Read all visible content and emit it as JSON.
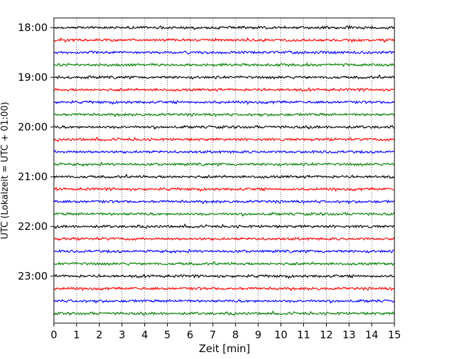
{
  "chart_data": {
    "type": "line",
    "title": "",
    "xlabel": "Zeit  [min]",
    "ylabel": "UTC (Lokalzeit = UTC + 01:00)",
    "xlim": [
      0,
      15
    ],
    "x_ticks": [
      "0",
      "1",
      "2",
      "3",
      "4",
      "5",
      "6",
      "7",
      "8",
      "9",
      "10",
      "11",
      "12",
      "13",
      "14",
      "15"
    ],
    "y_ticks": [
      "18:00",
      "19:00",
      "20:00",
      "21:00",
      "22:00",
      "23:00"
    ],
    "grid": "vertical-dotted",
    "trace_colors": [
      "#000000",
      "#ff0000",
      "#0000ff",
      "#008000"
    ],
    "series": [
      {
        "start": "18:00"
      },
      {
        "start": "18:15"
      },
      {
        "start": "18:30"
      },
      {
        "start": "18:45"
      },
      {
        "start": "19:00"
      },
      {
        "start": "19:15"
      },
      {
        "start": "19:30"
      },
      {
        "start": "19:45"
      },
      {
        "start": "20:00"
      },
      {
        "start": "20:15"
      },
      {
        "start": "20:30"
      },
      {
        "start": "20:45"
      },
      {
        "start": "21:00"
      },
      {
        "start": "21:15"
      },
      {
        "start": "21:30"
      },
      {
        "start": "21:45"
      },
      {
        "start": "22:00"
      },
      {
        "start": "22:15"
      },
      {
        "start": "22:30"
      },
      {
        "start": "22:45"
      },
      {
        "start": "23:00"
      },
      {
        "start": "23:15"
      },
      {
        "start": "23:30"
      },
      {
        "start": "23:45"
      }
    ]
  }
}
